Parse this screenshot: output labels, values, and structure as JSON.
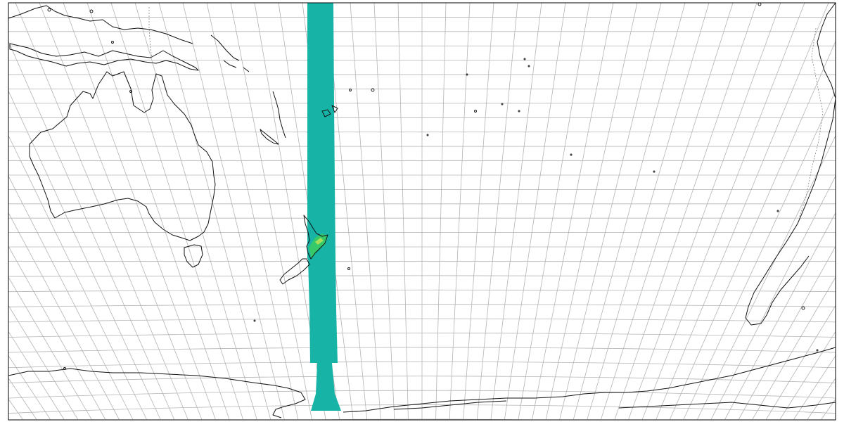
{
  "map": {
    "projection": "oblique",
    "field_color": "#16b3a6",
    "highlight_color": "#36c96a",
    "peak_color": "#a8e05a",
    "coast_color": "#111111",
    "grid_color": "#b4b4b4",
    "frame_color": "#000000",
    "regions": [
      "australia-mainland",
      "tasmania",
      "new-guinea",
      "new-zealand-north-island",
      "new-zealand-south-island",
      "antarctica-coast",
      "south-america-tip",
      "new-caledonia",
      "fiji",
      "solomon-islands",
      "vanuatu"
    ]
  }
}
